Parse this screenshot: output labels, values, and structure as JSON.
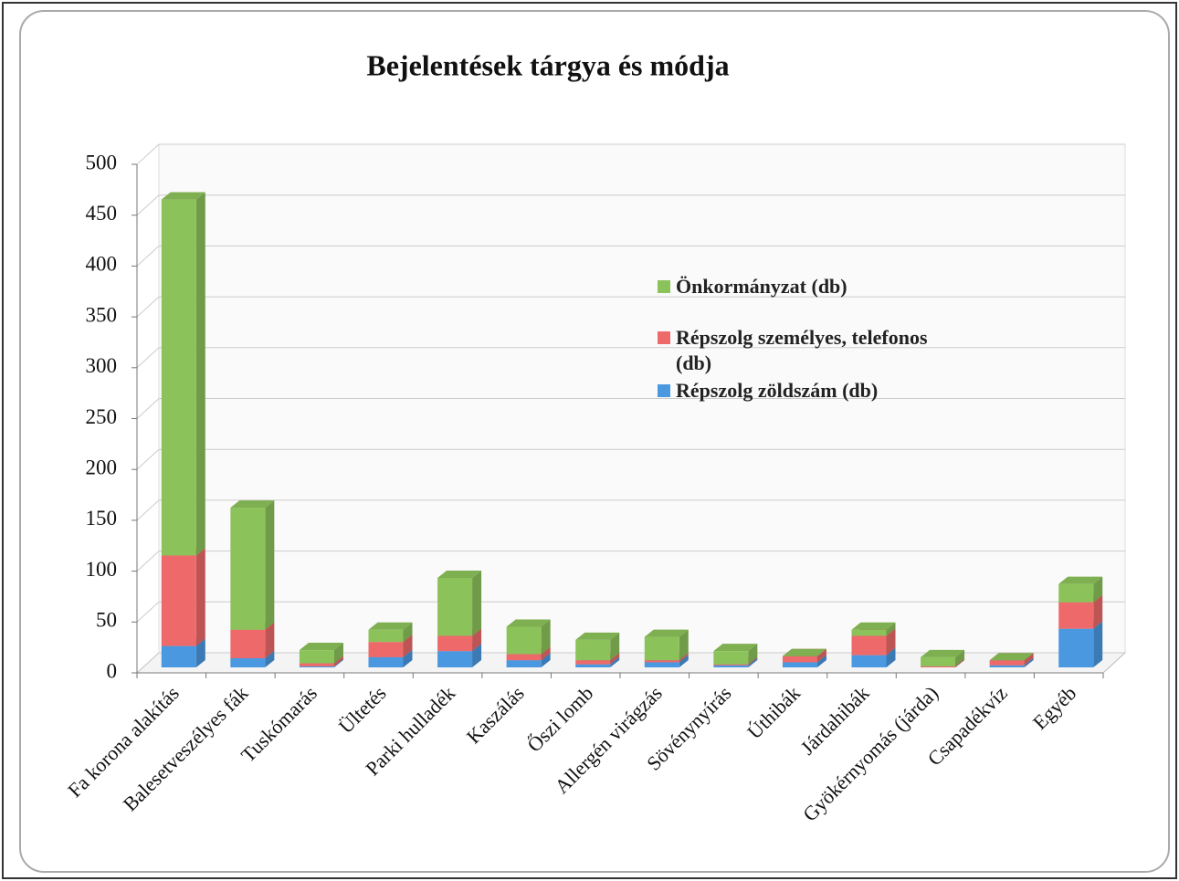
{
  "chart_data": {
    "type": "bar",
    "stacked": true,
    "title": "Bejelentések tárgya és módja",
    "categories": [
      "Fa korona alakítás",
      "Balesetveszélyes fák",
      "Tuskómarás",
      "Ültetés",
      "Parki hulladék",
      "Kaszálás",
      "Őszi lomb",
      "Allergén virágzás",
      "Sövénynyírás",
      "Úthibák",
      "Járdahibák",
      "Gyökérnyomás (járda)",
      "Csapadékvíz",
      "Egyéb"
    ],
    "series": [
      {
        "name": "Répszolg zöldszám (db)",
        "color": "#4a98e0",
        "values": [
          21,
          9,
          1,
          10,
          16,
          7,
          3,
          5,
          2,
          5,
          12,
          0,
          2,
          38
        ]
      },
      {
        "name": "Répszolg személyes, telefonos (db)",
        "color": "#ee6a6a",
        "values": [
          89,
          28,
          3,
          15,
          15,
          6,
          4,
          2,
          1,
          6,
          19,
          1,
          5,
          26
        ]
      },
      {
        "name": "Önkormányzat (db)",
        "color": "#8cc25a",
        "values": [
          350,
          120,
          13,
          12,
          57,
          27,
          20,
          23,
          13,
          0,
          6,
          9,
          0,
          18
        ]
      }
    ],
    "ylim": [
      0,
      500
    ],
    "yticks": [
      0,
      50,
      100,
      150,
      200,
      250,
      300,
      350,
      400,
      450,
      500
    ],
    "grid": true
  }
}
